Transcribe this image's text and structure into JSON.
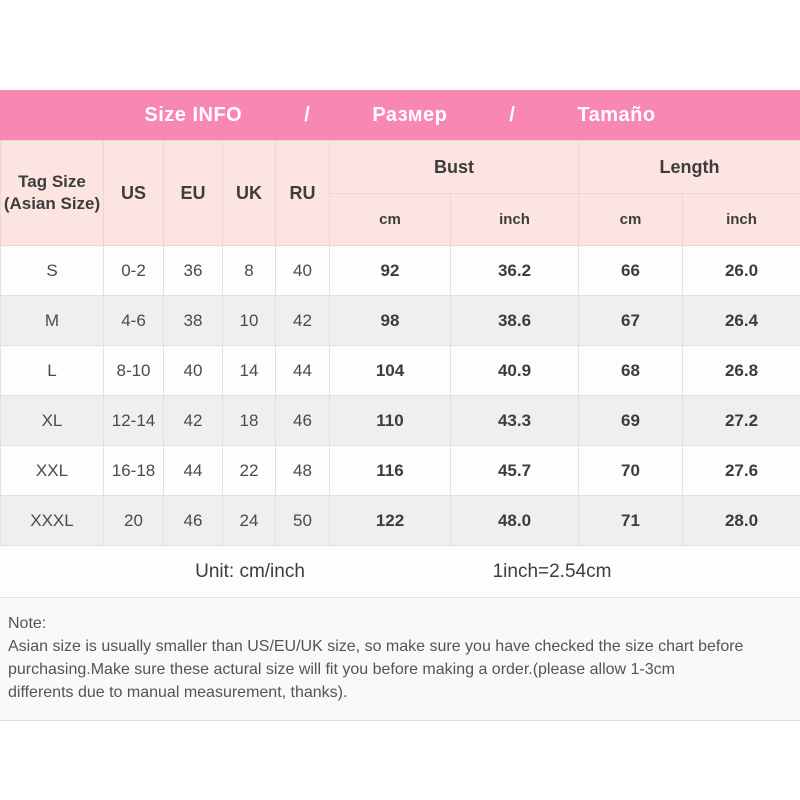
{
  "colors": {
    "banner-pink": "#f887b2",
    "header-pink": "#fce5e0",
    "row-alt-gray": "#efefef",
    "text-dark": "#3d3d3d"
  },
  "banner": {
    "title_en": "Size INFO",
    "separator1": "/",
    "title_ru": "Размер",
    "separator2": "/",
    "title_es": "Tamaño"
  },
  "table": {
    "corner_line1": "Tag Size",
    "corner_line2": "(Asian Size)",
    "size_cols": [
      "US",
      "EU",
      "UK",
      "RU"
    ],
    "group_headers": [
      "Bust",
      "Length"
    ],
    "sub_headers": [
      "cm",
      "inch",
      "cm",
      "inch"
    ],
    "rows": [
      [
        "S",
        "0-2",
        "36",
        "8",
        "40",
        "92",
        "36.2",
        "66",
        "26.0"
      ],
      [
        "M",
        "4-6",
        "38",
        "10",
        "42",
        "98",
        "38.6",
        "67",
        "26.4"
      ],
      [
        "L",
        "8-10",
        "40",
        "14",
        "44",
        "104",
        "40.9",
        "68",
        "26.8"
      ],
      [
        "XL",
        "12-14",
        "42",
        "18",
        "46",
        "110",
        "43.3",
        "69",
        "27.2"
      ],
      [
        "XXL",
        "16-18",
        "44",
        "22",
        "48",
        "116",
        "45.7",
        "70",
        "27.6"
      ],
      [
        "XXXL",
        "20",
        "46",
        "24",
        "50",
        "122",
        "48.0",
        "71",
        "28.0"
      ]
    ]
  },
  "footer": {
    "unit": "Unit: cm/inch",
    "conversion": "1inch=2.54cm"
  },
  "note": {
    "heading": "Note:",
    "lines": [
      "Asian size is usually smaller than US/EU/UK size, so make sure you have checked the size chart before",
      "purchasing.Make sure these actural size will fit you before making a order.(please allow 1-3cm",
      "differents due to manual measurement, thanks)."
    ]
  }
}
